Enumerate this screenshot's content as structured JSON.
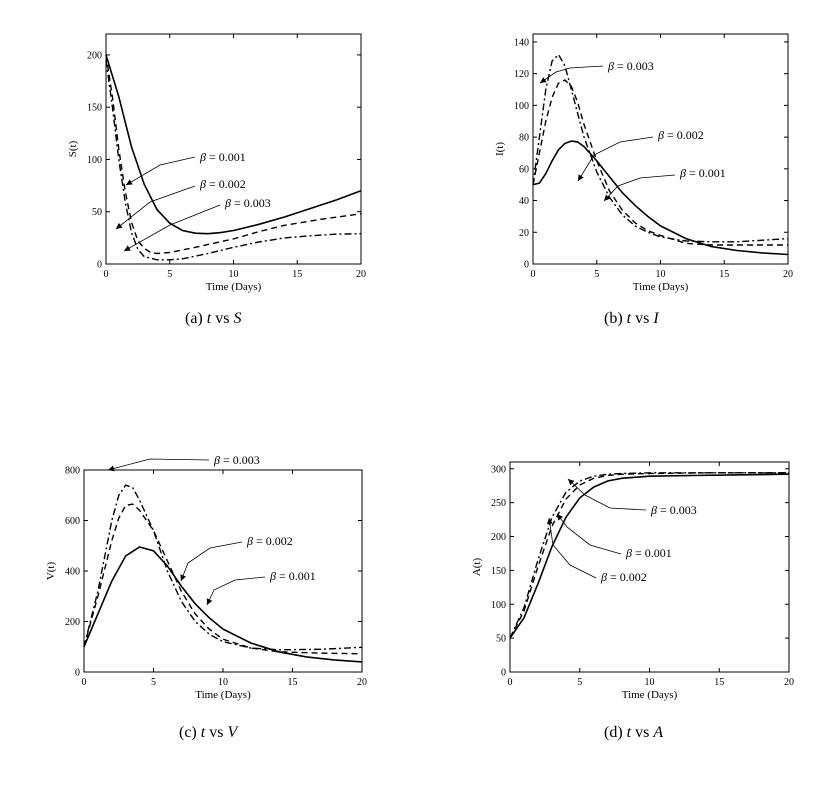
{
  "chart_data": [
    {
      "type": "line",
      "caption": {
        "prefix": "(a)",
        "var_x": "t",
        "sep": "vs",
        "var_y": "S"
      },
      "xlabel": "Time (Days)",
      "ylabel": "S(t)",
      "xlim": [
        0,
        20
      ],
      "ylim": [
        0,
        220
      ],
      "xticks": [
        0,
        5,
        10,
        15,
        20
      ],
      "yticks": [
        0,
        50,
        100,
        150,
        200
      ],
      "series": [
        {
          "style": "solid",
          "points": [
            [
              0,
              200
            ],
            [
              1,
              160
            ],
            [
              2,
              112
            ],
            [
              3,
              76
            ],
            [
              4,
              52
            ],
            [
              5,
              39
            ],
            [
              6,
              32
            ],
            [
              7,
              29.5
            ],
            [
              8,
              29
            ],
            [
              9,
              30
            ],
            [
              10,
              32
            ],
            [
              12,
              38
            ],
            [
              14,
              45
            ],
            [
              16,
              53
            ],
            [
              18,
              61
            ],
            [
              20,
              70
            ]
          ]
        },
        {
          "style": "dashed",
          "points": [
            [
              0,
              200
            ],
            [
              0.5,
              160
            ],
            [
              1,
              110
            ],
            [
              1.5,
              70
            ],
            [
              2,
              40
            ],
            [
              2.5,
              22
            ],
            [
              3,
              15
            ],
            [
              3.5,
              11
            ],
            [
              4,
              10
            ],
            [
              5,
              11
            ],
            [
              7,
              16
            ],
            [
              10,
              24
            ],
            [
              12,
              31
            ],
            [
              14,
              37
            ],
            [
              17,
              43
            ],
            [
              20,
              48
            ]
          ]
        },
        {
          "style": "dashdot",
          "points": [
            [
              0,
              195
            ],
            [
              0.5,
              150
            ],
            [
              1,
              100
            ],
            [
              1.5,
              60
            ],
            [
              2,
              30
            ],
            [
              2.5,
              14
            ],
            [
              3,
              7
            ],
            [
              4,
              4
            ],
            [
              5,
              4
            ],
            [
              6,
              5
            ],
            [
              8,
              10
            ],
            [
              10,
              16
            ],
            [
              12,
              21
            ],
            [
              14,
              25
            ],
            [
              16,
              27
            ],
            [
              18,
              28.5
            ],
            [
              20,
              29
            ]
          ]
        }
      ],
      "annotations": [
        {
          "label": "β = 0.001",
          "value": "0.001"
        },
        {
          "label": "β = 0.002",
          "value": "0.002"
        },
        {
          "label": "β = 0.003",
          "value": "0.003"
        }
      ]
    },
    {
      "type": "line",
      "caption": {
        "prefix": "(b)",
        "var_x": "t",
        "sep": "vs",
        "var_y": "I"
      },
      "xlabel": "Time (Days)",
      "ylabel": "I(t)",
      "xlim": [
        0,
        20
      ],
      "ylim": [
        0,
        145
      ],
      "xticks": [
        0,
        5,
        10,
        15,
        20
      ],
      "yticks": [
        0,
        20,
        40,
        60,
        80,
        100,
        120,
        140
      ],
      "series": [
        {
          "style": "solid",
          "points": [
            [
              0,
              50
            ],
            [
              0.5,
              51
            ],
            [
              1,
              57
            ],
            [
              1.5,
              65
            ],
            [
              2,
              72
            ],
            [
              2.5,
              76
            ],
            [
              3,
              77.5
            ],
            [
              3.5,
              77
            ],
            [
              4,
              74
            ],
            [
              5,
              65
            ],
            [
              6,
              55
            ],
            [
              7,
              45
            ],
            [
              8,
              37
            ],
            [
              9,
              30
            ],
            [
              10,
              24
            ],
            [
              12,
              16
            ],
            [
              14,
              11
            ],
            [
              16,
              8.5
            ],
            [
              18,
              7
            ],
            [
              20,
              6
            ]
          ]
        },
        {
          "style": "dashed",
          "points": [
            [
              0,
              50
            ],
            [
              0.5,
              70
            ],
            [
              1,
              90
            ],
            [
              1.5,
              105
            ],
            [
              2,
              114
            ],
            [
              2.5,
              116
            ],
            [
              3,
              112
            ],
            [
              3.5,
              102
            ],
            [
              4,
              88
            ],
            [
              5,
              65
            ],
            [
              6,
              46
            ],
            [
              7,
              34
            ],
            [
              8,
              26
            ],
            [
              9,
              21
            ],
            [
              10,
              18
            ],
            [
              12,
              13
            ],
            [
              14,
              12
            ],
            [
              16,
              12
            ],
            [
              18,
              12
            ],
            [
              20,
              12
            ]
          ]
        },
        {
          "style": "dashdot",
          "points": [
            [
              0,
              50
            ],
            [
              0.5,
              80
            ],
            [
              1,
              110
            ],
            [
              1.5,
              128
            ],
            [
              2,
              132
            ],
            [
              2.5,
              125
            ],
            [
              3,
              110
            ],
            [
              4,
              80
            ],
            [
              5,
              58
            ],
            [
              6,
              42
            ],
            [
              7,
              31
            ],
            [
              8,
              24
            ],
            [
              9,
              20
            ],
            [
              10,
              17
            ],
            [
              12,
              14.5
            ],
            [
              14,
              14
            ],
            [
              16,
              14
            ],
            [
              18,
              15
            ],
            [
              20,
              16
            ]
          ]
        }
      ],
      "annotations": [
        {
          "label": "β = 0.003",
          "value": "0.003"
        },
        {
          "label": "β = 0.002",
          "value": "0.002"
        },
        {
          "label": "β = 0.001",
          "value": "0.001"
        }
      ]
    },
    {
      "type": "line",
      "caption": {
        "prefix": "(c)",
        "var_x": "t",
        "sep": "vs",
        "var_y": "V"
      },
      "xlabel": "Time (Days)",
      "ylabel": "V(t)",
      "xlim": [
        0,
        20
      ],
      "ylim": [
        0,
        800
      ],
      "xticks": [
        0,
        5,
        10,
        15,
        20
      ],
      "yticks": [
        0,
        200,
        400,
        600,
        800
      ],
      "series": [
        {
          "style": "solid",
          "points": [
            [
              0,
              100
            ],
            [
              1,
              230
            ],
            [
              2,
              360
            ],
            [
              3,
              460
            ],
            [
              4,
              495
            ],
            [
              5,
              480
            ],
            [
              6,
              420
            ],
            [
              7,
              340
            ],
            [
              8,
              270
            ],
            [
              9,
              215
            ],
            [
              10,
              170
            ],
            [
              12,
              115
            ],
            [
              14,
              80
            ],
            [
              16,
              60
            ],
            [
              18,
              48
            ],
            [
              20,
              40
            ]
          ]
        },
        {
          "style": "dashed",
          "points": [
            [
              0,
              100
            ],
            [
              1,
              300
            ],
            [
              2,
              520
            ],
            [
              2.5,
              610
            ],
            [
              3,
              660
            ],
            [
              3.5,
              665
            ],
            [
              4,
              640
            ],
            [
              5,
              560
            ],
            [
              6,
              440
            ],
            [
              7,
              320
            ],
            [
              8,
              230
            ],
            [
              9,
              170
            ],
            [
              10,
              130
            ],
            [
              12,
              95
            ],
            [
              14,
              80
            ],
            [
              17,
              75
            ],
            [
              20,
              72
            ]
          ]
        },
        {
          "style": "dashdot",
          "points": [
            [
              0,
              100
            ],
            [
              1,
              320
            ],
            [
              2,
              600
            ],
            [
              2.5,
              700
            ],
            [
              3,
              740
            ],
            [
              3.5,
              730
            ],
            [
              4,
              680
            ],
            [
              5,
              560
            ],
            [
              6,
              400
            ],
            [
              7,
              280
            ],
            [
              8,
              200
            ],
            [
              9,
              150
            ],
            [
              10,
              120
            ],
            [
              12,
              95
            ],
            [
              14,
              88
            ],
            [
              17,
              90
            ],
            [
              20,
              98
            ]
          ]
        }
      ],
      "annotations": [
        {
          "label": "β = 0.003",
          "value": "0.003"
        },
        {
          "label": "β = 0.002",
          "value": "0.002"
        },
        {
          "label": "β = 0.001",
          "value": "0.001"
        }
      ]
    },
    {
      "type": "line",
      "caption": {
        "prefix": "(d)",
        "var_x": "t",
        "sep": "vs",
        "var_y": "A"
      },
      "xlabel": "Time (Days)",
      "ylabel": "A(t)",
      "xlim": [
        0,
        20
      ],
      "ylim": [
        0,
        310
      ],
      "xticks": [
        0,
        5,
        10,
        15,
        20
      ],
      "yticks": [
        0,
        50,
        100,
        150,
        200,
        250,
        300
      ],
      "series": [
        {
          "style": "solid",
          "points": [
            [
              0,
              50
            ],
            [
              1,
              80
            ],
            [
              2,
              130
            ],
            [
              3,
              185
            ],
            [
              4,
              228
            ],
            [
              5,
              257
            ],
            [
              6,
              273
            ],
            [
              7,
              282
            ],
            [
              8,
              286
            ],
            [
              10,
              289
            ],
            [
              13,
              290
            ],
            [
              16,
              291
            ],
            [
              20,
              292
            ]
          ]
        },
        {
          "style": "dashed",
          "points": [
            [
              0,
              50
            ],
            [
              1,
              90
            ],
            [
              2,
              155
            ],
            [
              3,
              215
            ],
            [
              4,
              255
            ],
            [
              5,
              276
            ],
            [
              6,
              286
            ],
            [
              7,
              290
            ],
            [
              8,
              292
            ],
            [
              10,
              293
            ],
            [
              14,
              294
            ],
            [
              20,
              294
            ]
          ]
        },
        {
          "style": "dashdot",
          "points": [
            [
              0,
              50
            ],
            [
              1,
              95
            ],
            [
              2,
              165
            ],
            [
              3,
              228
            ],
            [
              4,
              265
            ],
            [
              5,
              282
            ],
            [
              6,
              289
            ],
            [
              7,
              292
            ],
            [
              8,
              293
            ],
            [
              10,
              294
            ],
            [
              14,
              294
            ],
            [
              20,
              294
            ]
          ]
        }
      ],
      "annotations": [
        {
          "label": "β = 0.003",
          "value": "0.003"
        },
        {
          "label": "β = 0.001",
          "value": "0.001"
        },
        {
          "label": "β = 0.002",
          "value": "0.002"
        }
      ]
    }
  ]
}
